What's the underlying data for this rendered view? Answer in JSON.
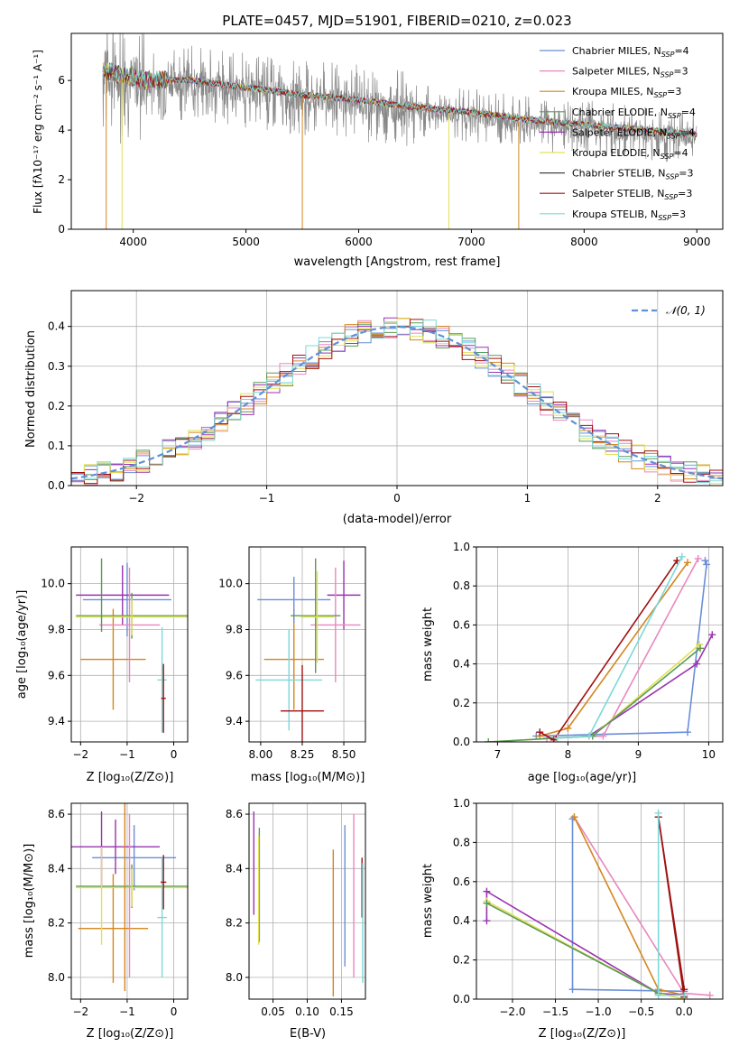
{
  "chart_data": [
    {
      "id": "spectrum",
      "type": "line",
      "title": "PLATE=0457, MJD=51901, FIBERID=0210, z=0.023",
      "xlabel": "wavelength [Angstrom, rest frame]",
      "ylabel": "Flux [fλ10⁻¹⁷ erg cm⁻² s⁻¹ A⁻¹]",
      "xlim": [
        3450,
        9230
      ],
      "ylim": [
        0,
        7.9
      ],
      "xticks": [
        "4000",
        "5000",
        "6000",
        "7000",
        "8000",
        "9000"
      ],
      "yticks": [
        "0",
        "2",
        "4",
        "6"
      ],
      "data_range": [
        3730,
        9000
      ],
      "continuum": {
        "x": [
          3730,
          3900,
          4100,
          4500,
          5000,
          5500,
          6000,
          6500,
          7000,
          7500,
          8000,
          8500,
          9000
        ],
        "y": [
          6.3,
          6.1,
          5.9,
          5.9,
          5.6,
          5.3,
          5.1,
          4.8,
          4.6,
          4.3,
          4.1,
          3.9,
          3.7
        ]
      },
      "legend": [
        {
          "label": "Chabrier MILES, N",
          "sub": "SSP",
          "suffix": "=4",
          "color": "#6a8ed8"
        },
        {
          "label": "Salpeter MILES, N",
          "sub": "SSP",
          "suffix": "=3",
          "color": "#e987bf"
        },
        {
          "label": "Kroupa MILES, N",
          "sub": "SSP",
          "suffix": "=3",
          "color": "#d4861f"
        },
        {
          "label": "Chabrier ELODIE, N",
          "sub": "SSP",
          "suffix": "=4",
          "color": "#5a9a55"
        },
        {
          "label": "Salpeter ELODIE, N",
          "sub": "SSP",
          "suffix": "=4",
          "color": "#9a32b0"
        },
        {
          "label": "Kroupa ELODIE, N",
          "sub": "SSP",
          "suffix": "=4",
          "color": "#e3e055"
        },
        {
          "label": "Chabrier STELIB, N",
          "sub": "SSP",
          "suffix": "=3",
          "color": "#444444"
        },
        {
          "label": "Salpeter STELIB, N",
          "sub": "SSP",
          "suffix": "=3",
          "color": "#a01010"
        },
        {
          "label": "Kroupa STELIB, N",
          "sub": "SSP",
          "suffix": "=3",
          "color": "#7dd8d8"
        }
      ]
    },
    {
      "id": "residuals",
      "type": "histogram",
      "xlabel": "(data-model)/error",
      "ylabel": "Normed distribution",
      "xlim": [
        -2.5,
        2.5
      ],
      "ylim": [
        0,
        0.49
      ],
      "xticks": [
        "−2",
        "−1",
        "0",
        "1",
        "2"
      ],
      "yticks": [
        "0.0",
        "0.1",
        "0.2",
        "0.3",
        "0.4"
      ],
      "legend": "𝒩(0, 1)",
      "series_colors": [
        "#6a8ed8",
        "#e987bf",
        "#d4861f",
        "#5a9a55",
        "#9a32b0",
        "#e3e055",
        "#a01010",
        "#7dd8d8"
      ]
    },
    {
      "id": "age_vs_Z",
      "type": "errorbar",
      "xlabel": "Z [log₁₀(Z/Z⊙)]",
      "ylabel": "age  [log₁₀(age/yr)]",
      "xlim": [
        -2.2,
        0.3
      ],
      "ylim": [
        9.31,
        10.16
      ],
      "xticks": [
        "−2",
        "−1",
        "0"
      ],
      "yticks": [
        "9.4",
        "9.6",
        "9.8",
        "10.0"
      ],
      "bars": [
        {
          "x": -1.3,
          "y": 9.67,
          "xerr": 0.7,
          "yerr": 0.22,
          "color": "#d4861f"
        },
        {
          "x": -1.0,
          "y": 9.93,
          "xerr": 0.95,
          "yerr": 0.16,
          "color": "#6a8ed8"
        },
        {
          "x": -1.1,
          "y": 9.95,
          "xerr": 1.0,
          "yerr": 0.13,
          "color": "#9a32b0"
        },
        {
          "x": -0.95,
          "y": 9.82,
          "xerr": 0.65,
          "yerr": 0.25,
          "color": "#e987bf"
        },
        {
          "x": -0.9,
          "y": 9.86,
          "xerr": 1.2,
          "yerr": 0.1,
          "color": "#5a9a55"
        },
        {
          "x": -0.9,
          "y": 9.855,
          "xerr": 1.2,
          "yerr": 0.08,
          "color": "#e3e055"
        },
        {
          "x": -1.55,
          "y": 9.95,
          "xerr": 0.0,
          "yerr": 0.16,
          "color": "#5a9a55"
        },
        {
          "x": -0.25,
          "y": 9.58,
          "xerr": 0.1,
          "yerr": 0.23,
          "color": "#7dd8d8"
        },
        {
          "x": -0.22,
          "y": 9.5,
          "xerr": 0.05,
          "yerr": 0.15,
          "color": "#a01010"
        }
      ]
    },
    {
      "id": "age_vs_mass",
      "type": "errorbar",
      "xlabel": "mass [log₁₀(M/M⊙)]",
      "xlim": [
        7.93,
        8.63
      ],
      "ylim": [
        9.31,
        10.16
      ],
      "xticks": [
        "8.00",
        "8.25",
        "8.50"
      ],
      "yticks": [
        "9.4",
        "9.6",
        "9.8",
        "10.0"
      ],
      "bars": [
        {
          "x": 8.2,
          "y": 9.67,
          "xerr": 0.18,
          "yerr": 0.22,
          "color": "#d4861f"
        },
        {
          "x": 8.2,
          "y": 9.93,
          "xerr": 0.22,
          "yerr": 0.1,
          "color": "#6a8ed8"
        },
        {
          "x": 8.5,
          "y": 9.95,
          "xerr": 0.1,
          "yerr": 0.15,
          "color": "#9a32b0"
        },
        {
          "x": 8.45,
          "y": 9.82,
          "xerr": 0.15,
          "yerr": 0.25,
          "color": "#e987bf"
        },
        {
          "x": 8.33,
          "y": 9.86,
          "xerr": 0.15,
          "yerr": 0.25,
          "color": "#5a9a55"
        },
        {
          "x": 8.34,
          "y": 9.855,
          "xerr": 0.1,
          "yerr": 0.2,
          "color": "#e3e055"
        },
        {
          "x": 8.17,
          "y": 9.58,
          "xerr": 0.2,
          "yerr": 0.22,
          "color": "#7dd8d8"
        },
        {
          "x": 8.25,
          "y": 9.445,
          "xerr": 0.13,
          "yerr": 0.2,
          "color": "#a01010"
        }
      ]
    },
    {
      "id": "mass_weight_vs_age",
      "type": "line",
      "xlabel": "age  [log₁₀(age/yr)]",
      "ylabel": "mass weight",
      "xlim": [
        6.7,
        10.2
      ],
      "ylim": [
        0,
        1.0
      ],
      "xticks": [
        "7",
        "8",
        "9",
        "10"
      ],
      "yticks": [
        "0.0",
        "0.2",
        "0.4",
        "0.6",
        "0.8",
        "1.0"
      ],
      "series": [
        {
          "color": "#6a8ed8",
          "x": [
            7.55,
            9.7,
            9.97,
            9.95
          ],
          "y": [
            0.03,
            0.05,
            0.91,
            0.93
          ]
        },
        {
          "color": "#e987bf",
          "x": [
            7.7,
            8.5,
            9.85
          ],
          "y": [
            0.02,
            0.03,
            0.94
          ]
        },
        {
          "color": "#d4861f",
          "x": [
            7.6,
            8.0,
            9.7
          ],
          "y": [
            0.03,
            0.07,
            0.92
          ]
        },
        {
          "color": "#9a32b0",
          "x": [
            8.3,
            9.83,
            10.05
          ],
          "y": [
            0.03,
            0.4,
            0.55
          ]
        },
        {
          "color": "#e3e055",
          "x": [
            6.87,
            8.35,
            9.87
          ],
          "y": [
            0.0,
            0.03,
            0.5
          ]
        },
        {
          "color": "#5a9a55",
          "x": [
            6.87,
            8.35,
            9.88
          ],
          "y": [
            0.0,
            0.03,
            0.48
          ]
        },
        {
          "color": "#a01010",
          "x": [
            7.6,
            7.8,
            9.55
          ],
          "y": [
            0.05,
            0.01,
            0.93
          ]
        },
        {
          "color": "#7dd8d8",
          "x": [
            7.85,
            8.3,
            9.62
          ],
          "y": [
            0.02,
            0.03,
            0.95
          ]
        }
      ]
    },
    {
      "id": "mass_vs_Z",
      "type": "errorbar",
      "xlabel": "Z [log₁₀(Z/Z⊙)]",
      "ylabel": "mass [log₁₀(M/M⊙)]",
      "xlim": [
        -2.2,
        0.3
      ],
      "ylim": [
        7.92,
        8.64
      ],
      "xticks": [
        "−2",
        "−1",
        "0"
      ],
      "yticks": [
        "8.0",
        "8.2",
        "8.4",
        "8.6"
      ],
      "bars": [
        {
          "x": -1.3,
          "y": 8.18,
          "xerr": 0.75,
          "yerr": 0.2,
          "color": "#d4861f"
        },
        {
          "x": -0.85,
          "y": 8.44,
          "xerr": 0.9,
          "yerr": 0.12,
          "color": "#6a8ed8"
        },
        {
          "x": -1.25,
          "y": 8.48,
          "xerr": 0.95,
          "yerr": 0.1,
          "color": "#9a32b0"
        },
        {
          "x": -0.9,
          "y": 8.335,
          "xerr": 1.2,
          "yerr": 0.08,
          "color": "#5a9a55"
        },
        {
          "x": -0.9,
          "y": 8.33,
          "xerr": 1.2,
          "yerr": 0.07,
          "color": "#e3e055"
        },
        {
          "x": -0.95,
          "y": 8.3,
          "xerr": 0.0,
          "yerr": 0.3,
          "color": "#e987bf"
        },
        {
          "x": -1.05,
          "y": 8.3,
          "xerr": 0.0,
          "yerr": 0.35,
          "color": "#d4861f"
        },
        {
          "x": -1.55,
          "y": 8.47,
          "xerr": 0.0,
          "yerr": 0.14,
          "color": "#9a32b0"
        },
        {
          "x": -1.55,
          "y": 8.3,
          "xerr": 0.0,
          "yerr": 0.18,
          "color": "#e3e055"
        },
        {
          "x": -0.25,
          "y": 8.22,
          "xerr": 0.1,
          "yerr": 0.22,
          "color": "#7dd8d8"
        },
        {
          "x": -0.22,
          "y": 8.35,
          "xerr": 0.06,
          "yerr": 0.1,
          "color": "#a01010"
        }
      ]
    },
    {
      "id": "mass_vs_EBV",
      "type": "errorbar",
      "xlabel": "E(B-V)",
      "xlim": [
        0.015,
        0.185
      ],
      "ylim": [
        7.92,
        8.64
      ],
      "xticks": [
        "0.05",
        "0.10",
        "0.15"
      ],
      "yticks": [
        "8.0",
        "8.2",
        "8.4",
        "8.6"
      ],
      "bars": [
        {
          "x": 0.022,
          "y": 8.42,
          "xerr": 0.0,
          "yerr": 0.19,
          "color": "#9a32b0"
        },
        {
          "x": 0.03,
          "y": 8.34,
          "xerr": 0.0,
          "yerr": 0.21,
          "color": "#5a9a55"
        },
        {
          "x": 0.029,
          "y": 8.32,
          "xerr": 0.0,
          "yerr": 0.2,
          "color": "#e3e055"
        },
        {
          "x": 0.138,
          "y": 8.2,
          "xerr": 0.0,
          "yerr": 0.27,
          "color": "#d4861f"
        },
        {
          "x": 0.155,
          "y": 8.3,
          "xerr": 0.0,
          "yerr": 0.26,
          "color": "#6a8ed8"
        },
        {
          "x": 0.168,
          "y": 8.3,
          "xerr": 0.0,
          "yerr": 0.3,
          "color": "#e987bf"
        },
        {
          "x": 0.18,
          "y": 8.33,
          "xerr": 0.0,
          "yerr": 0.11,
          "color": "#a01010"
        },
        {
          "x": 0.181,
          "y": 8.2,
          "xerr": 0.0,
          "yerr": 0.22,
          "color": "#7dd8d8"
        }
      ]
    },
    {
      "id": "mass_weight_vs_Z",
      "type": "line",
      "xlabel": "Z [log₁₀(Z/Z⊙)]",
      "ylabel": "mass weight",
      "xlim": [
        -2.42,
        0.45
      ],
      "ylim": [
        0,
        1.0
      ],
      "xticks": [
        "−2.0",
        "−1.5",
        "−1.0",
        "−0.5",
        "0.0"
      ],
      "yticks": [
        "0.0",
        "0.2",
        "0.4",
        "0.6",
        "0.8",
        "1.0"
      ],
      "series": [
        {
          "color": "#6a8ed8",
          "x": [
            -1.3,
            -1.3,
            0.0,
            -0.3
          ],
          "y": [
            0.92,
            0.05,
            0.04,
            0.93
          ]
        },
        {
          "color": "#e987bf",
          "x": [
            -1.28,
            0.0,
            0.3
          ],
          "y": [
            0.93,
            0.03,
            0.02
          ]
        },
        {
          "color": "#d4861f",
          "x": [
            -1.28,
            -0.3,
            0.0
          ],
          "y": [
            0.93,
            0.05,
            0.02
          ]
        },
        {
          "color": "#9a32b0",
          "x": [
            -2.3,
            -2.3,
            -0.3,
            0.0
          ],
          "y": [
            0.4,
            0.55,
            0.03,
            0.02
          ]
        },
        {
          "color": "#e3e055",
          "x": [
            -2.3,
            -0.3,
            0.0
          ],
          "y": [
            0.5,
            0.03,
            0.0
          ]
        },
        {
          "color": "#5a9a55",
          "x": [
            -2.3,
            -0.3
          ],
          "y": [
            0.49,
            0.03
          ]
        },
        {
          "color": "#a01010",
          "x": [
            0.0,
            -0.3,
            0.0
          ],
          "y": [
            0.01,
            0.93,
            0.05
          ]
        },
        {
          "color": "#7dd8d8",
          "x": [
            -0.3,
            -0.3,
            0.0
          ],
          "y": [
            0.95,
            0.02,
            0.02
          ]
        }
      ]
    }
  ]
}
